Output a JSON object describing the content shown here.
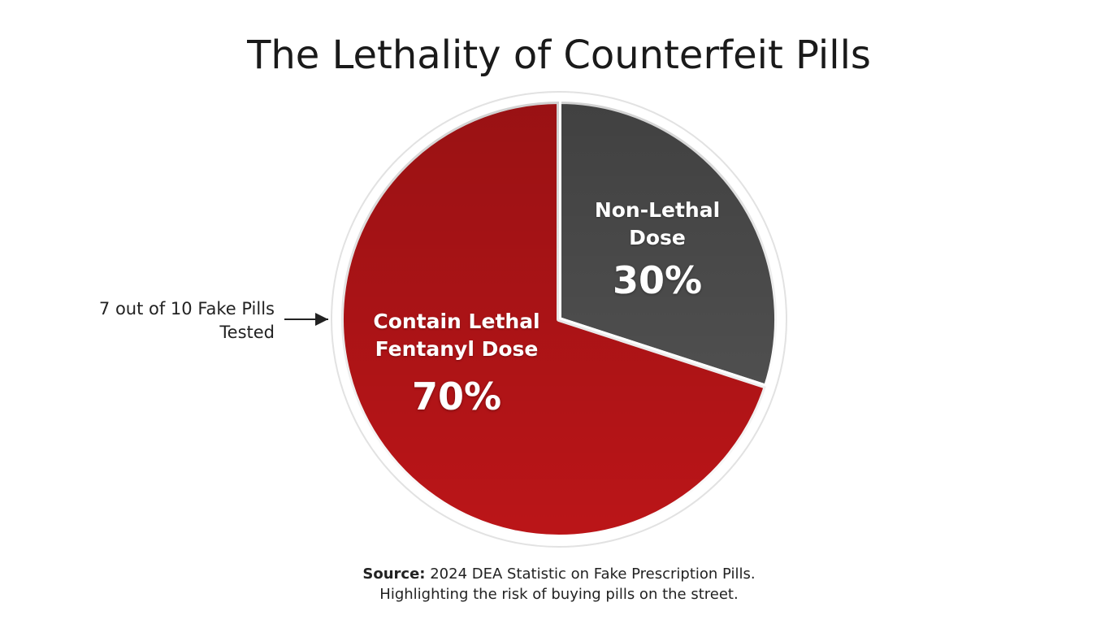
{
  "chart_data": {
    "type": "pie",
    "title": "The Lethality of Counterfeit Pills",
    "categories": [
      "Non-Lethal Dose",
      "Contain Lethal Fentanyl Dose"
    ],
    "values": [
      30,
      70
    ],
    "value_labels": [
      "30%",
      "70%"
    ],
    "colors": [
      "#4f4f4f",
      "#bb1518"
    ],
    "annotation": "7 out of 10 Fake Pills Tested",
    "source_label": "Source:",
    "source": "2024 DEA Statistic on Fake Prescription Pills.",
    "caption": "Highlighting the risk of buying pills on the street."
  }
}
